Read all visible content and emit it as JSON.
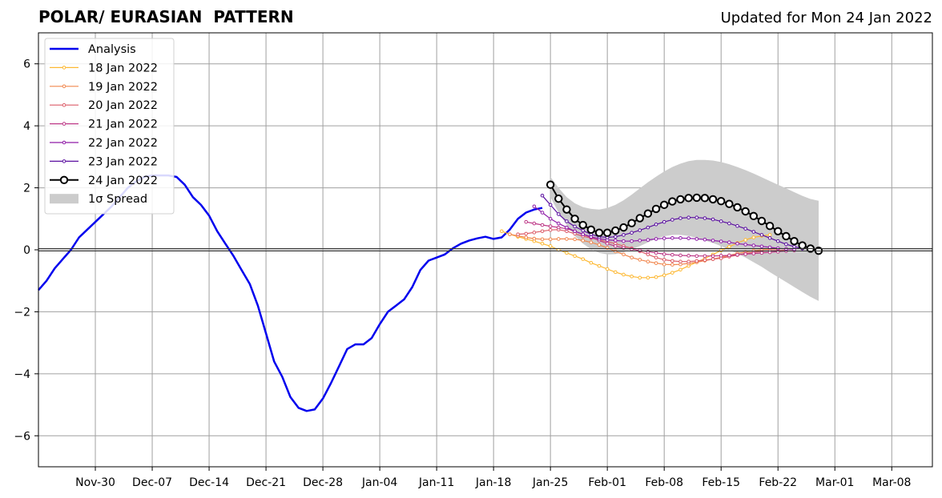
{
  "chart_data": {
    "type": "line",
    "title": "POLAR/ EURASIAN  PATTERN",
    "subtitle": "Updated for Mon 24 Jan 2022",
    "xlabel": "",
    "ylabel": "",
    "xlim": [
      "2021-11-23",
      "2022-03-13"
    ],
    "ylim": [
      -7,
      7
    ],
    "xticks": [
      "Nov-30",
      "Dec-07",
      "Dec-14",
      "Dec-21",
      "Dec-28",
      "Jan-04",
      "Jan-11",
      "Jan-18",
      "Jan-25",
      "Feb-01",
      "Feb-08",
      "Feb-15",
      "Feb-22",
      "Mar-01",
      "Mar-08"
    ],
    "xtick_dates": [
      "2021-11-30",
      "2021-12-07",
      "2021-12-14",
      "2021-12-21",
      "2021-12-28",
      "2022-01-04",
      "2022-01-11",
      "2022-01-18",
      "2022-01-25",
      "2022-02-01",
      "2022-02-08",
      "2022-02-15",
      "2022-02-22",
      "2022-03-01",
      "2022-03-08"
    ],
    "yticks": [
      -6,
      -4,
      -2,
      0,
      2,
      4,
      6
    ],
    "ytick_labels": [
      "−6",
      "−4",
      "−2",
      "0",
      "2",
      "4",
      "6"
    ],
    "grid": true,
    "legend_position": "top-left",
    "legend": [
      {
        "label": "Analysis",
        "color": "#0000ee",
        "kind": "line"
      },
      {
        "label": "18 Jan 2022",
        "color": "#fdb832",
        "kind": "small-marker"
      },
      {
        "label": "19 Jan 2022",
        "color": "#f1874e",
        "kind": "small-marker"
      },
      {
        "label": "20 Jan 2022",
        "color": "#dc5c68",
        "kind": "small-marker"
      },
      {
        "label": "21 Jan 2022",
        "color": "#bd3786",
        "kind": "small-marker"
      },
      {
        "label": "22 Jan 2022",
        "color": "#8f1ba8",
        "kind": "small-marker"
      },
      {
        "label": "23 Jan 2022",
        "color": "#5a0fa0",
        "kind": "small-marker"
      },
      {
        "label": "24 Jan 2022",
        "color": "#000000",
        "kind": "big-marker"
      },
      {
        "label": "1σ Spread",
        "color": "#cccccc",
        "kind": "patch"
      }
    ],
    "series": [
      {
        "name": "Analysis",
        "color": "#0000ee",
        "x": [
          "2021-11-23",
          "2021-11-24",
          "2021-11-25",
          "2021-11-26",
          "2021-11-27",
          "2021-11-28",
          "2021-11-29",
          "2021-11-30",
          "2021-12-01",
          "2021-12-02",
          "2021-12-03",
          "2021-12-04",
          "2021-12-05",
          "2021-12-06",
          "2021-12-07",
          "2021-12-08",
          "2021-12-09",
          "2021-12-10",
          "2021-12-11",
          "2021-12-12",
          "2021-12-13",
          "2021-12-14",
          "2021-12-15",
          "2021-12-16",
          "2021-12-17",
          "2021-12-18",
          "2021-12-19",
          "2021-12-20",
          "2021-12-21",
          "2021-12-22",
          "2021-12-23",
          "2021-12-24",
          "2021-12-25",
          "2021-12-26",
          "2021-12-27",
          "2021-12-28",
          "2021-12-29",
          "2021-12-30",
          "2021-12-31",
          "2022-01-01",
          "2022-01-02",
          "2022-01-03",
          "2022-01-04",
          "2022-01-05",
          "2022-01-06",
          "2022-01-07",
          "2022-01-08",
          "2022-01-09",
          "2022-01-10",
          "2022-01-11",
          "2022-01-12",
          "2022-01-13",
          "2022-01-14",
          "2022-01-15",
          "2022-01-16",
          "2022-01-17",
          "2022-01-18",
          "2022-01-19",
          "2022-01-20",
          "2022-01-21",
          "2022-01-22",
          "2022-01-23",
          "2022-01-24"
        ],
        "y": [
          -1.3,
          -1.0,
          -0.6,
          -0.3,
          0.0,
          0.4,
          0.65,
          0.9,
          1.15,
          1.4,
          1.7,
          2.0,
          2.2,
          2.35,
          2.4,
          2.4,
          2.4,
          2.35,
          2.1,
          1.7,
          1.45,
          1.1,
          0.6,
          0.2,
          -0.2,
          -0.65,
          -1.1,
          -1.8,
          -2.7,
          -3.6,
          -4.1,
          -4.75,
          -5.1,
          -5.2,
          -5.15,
          -4.8,
          -4.3,
          -3.75,
          -3.2,
          -3.05,
          -3.05,
          -2.85,
          -2.4,
          -2.0,
          -1.8,
          -1.6,
          -1.2,
          -0.65,
          -0.35,
          -0.25,
          -0.15,
          0.05,
          0.2,
          0.3,
          0.37,
          0.42,
          0.35,
          0.4,
          0.65,
          1.0,
          1.2,
          1.3,
          1.35
        ]
      },
      {
        "name": "18 Jan 2022",
        "color": "#fdb832",
        "start": "2022-01-19",
        "y": [
          0.6,
          0.5,
          0.42,
          0.35,
          0.28,
          0.2,
          0.12,
          0.0,
          -0.1,
          -0.2,
          -0.3,
          -0.42,
          -0.52,
          -0.62,
          -0.72,
          -0.8,
          -0.86,
          -0.9,
          -0.9,
          -0.88,
          -0.82,
          -0.74,
          -0.64,
          -0.52,
          -0.4,
          -0.28,
          -0.15,
          -0.02,
          0.1,
          0.22,
          0.32,
          0.4,
          0.45,
          0.48
        ]
      },
      {
        "name": "19 Jan 2022",
        "color": "#f1874e",
        "start": "2022-01-20",
        "y": [
          0.5,
          0.45,
          0.4,
          0.36,
          0.34,
          0.34,
          0.35,
          0.35,
          0.34,
          0.3,
          0.24,
          0.16,
          0.06,
          -0.05,
          -0.15,
          -0.25,
          -0.32,
          -0.38,
          -0.43,
          -0.47,
          -0.48,
          -0.47,
          -0.44,
          -0.4,
          -0.35,
          -0.3,
          -0.24,
          -0.18,
          -0.12,
          -0.07,
          -0.03,
          0.0,
          0.02,
          0.03
        ]
      },
      {
        "name": "20 Jan 2022",
        "color": "#dc5c68",
        "start": "2022-01-21",
        "y": [
          0.5,
          0.52,
          0.56,
          0.6,
          0.64,
          0.65,
          0.6,
          0.52,
          0.44,
          0.38,
          0.32,
          0.26,
          0.2,
          0.12,
          0.05,
          -0.05,
          -0.15,
          -0.25,
          -0.32,
          -0.36,
          -0.38,
          -0.38,
          -0.36,
          -0.33,
          -0.3,
          -0.27,
          -0.22,
          -0.17,
          -0.12,
          -0.08,
          -0.05,
          -0.03,
          -0.02,
          -0.01
        ]
      },
      {
        "name": "21 Jan 2022",
        "color": "#bd3786",
        "start": "2022-01-22",
        "y": [
          0.9,
          0.85,
          0.8,
          0.76,
          0.72,
          0.68,
          0.6,
          0.5,
          0.4,
          0.3,
          0.2,
          0.12,
          0.06,
          0.02,
          -0.02,
          -0.06,
          -0.1,
          -0.14,
          -0.16,
          -0.18,
          -0.19,
          -0.2,
          -0.2,
          -0.2,
          -0.19,
          -0.18,
          -0.16,
          -0.14,
          -0.12,
          -0.1,
          -0.08,
          -0.06,
          -0.04,
          -0.02
        ]
      },
      {
        "name": "22 Jan 2022",
        "color": "#8f1ba8",
        "start": "2022-01-23",
        "y": [
          1.4,
          1.2,
          1.0,
          0.85,
          0.72,
          0.6,
          0.5,
          0.42,
          0.36,
          0.32,
          0.3,
          0.28,
          0.28,
          0.3,
          0.32,
          0.35,
          0.37,
          0.38,
          0.38,
          0.37,
          0.35,
          0.33,
          0.3,
          0.27,
          0.24,
          0.2,
          0.17,
          0.14,
          0.11,
          0.08,
          0.05,
          0.03,
          0.02
        ]
      },
      {
        "name": "23 Jan 2022",
        "color": "#5a0fa0",
        "start": "2022-01-24",
        "y": [
          1.75,
          1.45,
          1.15,
          0.92,
          0.75,
          0.62,
          0.5,
          0.42,
          0.4,
          0.42,
          0.48,
          0.55,
          0.63,
          0.72,
          0.82,
          0.9,
          0.97,
          1.02,
          1.04,
          1.04,
          1.02,
          0.98,
          0.92,
          0.85,
          0.77,
          0.68,
          0.58,
          0.48,
          0.38,
          0.28,
          0.18,
          0.1,
          0.04
        ]
      },
      {
        "name": "24 Jan 2022",
        "color": "#000000",
        "start": "2022-01-25",
        "y": [
          2.1,
          1.65,
          1.3,
          1.0,
          0.8,
          0.65,
          0.55,
          0.55,
          0.62,
          0.72,
          0.86,
          1.02,
          1.17,
          1.32,
          1.45,
          1.56,
          1.63,
          1.67,
          1.68,
          1.67,
          1.63,
          1.57,
          1.48,
          1.37,
          1.24,
          1.09,
          0.93,
          0.77,
          0.6,
          0.44,
          0.28,
          0.14,
          0.04,
          -0.03
        ]
      }
    ],
    "spread": {
      "name": "1σ Spread",
      "color": "#cccccc",
      "start": "2022-01-25",
      "upper": [
        2.35,
        2.0,
        1.7,
        1.5,
        1.38,
        1.32,
        1.3,
        1.35,
        1.45,
        1.6,
        1.78,
        1.98,
        2.18,
        2.36,
        2.53,
        2.67,
        2.78,
        2.86,
        2.9,
        2.9,
        2.88,
        2.83,
        2.76,
        2.67,
        2.57,
        2.46,
        2.34,
        2.22,
        2.1,
        1.98,
        1.86,
        1.74,
        1.64,
        1.58
      ],
      "lower": [
        1.7,
        1.2,
        0.8,
        0.45,
        0.2,
        0.02,
        -0.1,
        -0.15,
        -0.14,
        -0.08,
        0.02,
        0.12,
        0.24,
        0.36,
        0.44,
        0.48,
        0.48,
        0.45,
        0.38,
        0.3,
        0.22,
        0.12,
        0.0,
        -0.12,
        -0.25,
        -0.4,
        -0.55,
        -0.72,
        -0.88,
        -1.04,
        -1.2,
        -1.36,
        -1.52,
        -1.65
      ]
    }
  }
}
